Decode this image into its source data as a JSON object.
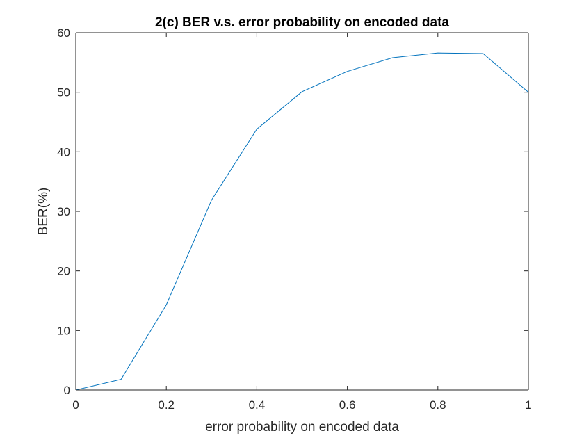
{
  "chart_data": {
    "type": "line",
    "title": "2(c) BER v.s. error probability on encoded data",
    "xlabel": "error probability on encoded data",
    "ylabel": "BER(%)",
    "xlim": [
      0,
      1
    ],
    "ylim": [
      0,
      60
    ],
    "xticks": [
      0,
      0.2,
      0.4,
      0.6,
      0.8,
      1
    ],
    "xtick_labels": [
      "0",
      "0.2",
      "0.4",
      "0.6",
      "0.8",
      "1"
    ],
    "yticks": [
      0,
      10,
      20,
      30,
      40,
      50,
      60
    ],
    "ytick_labels": [
      "0",
      "10",
      "20",
      "30",
      "40",
      "50",
      "60"
    ],
    "grid": false,
    "series": [
      {
        "color": "#0072BD",
        "x": [
          0,
          0.1,
          0.2,
          0.3,
          0.4,
          0.5,
          0.6,
          0.7,
          0.8,
          0.9,
          1.0
        ],
        "y": [
          0,
          1.8,
          14.3,
          31.9,
          43.8,
          50.1,
          53.5,
          55.8,
          56.6,
          56.5,
          50.0
        ]
      },
      {
        "color": "#7E2F8E",
        "x": [
          0,
          0.1,
          0.2,
          0.3,
          0.4,
          0.5,
          0.6,
          0.7,
          0.8,
          0.9,
          1.0
        ],
        "y": [
          0,
          0,
          0,
          0,
          0,
          0,
          0,
          0,
          0,
          0,
          0
        ]
      }
    ]
  }
}
